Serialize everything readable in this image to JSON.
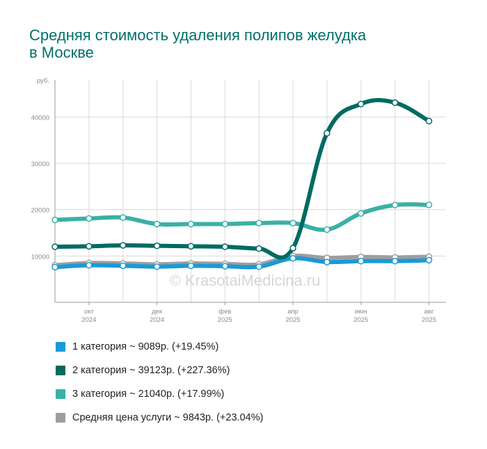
{
  "chart_data": {
    "type": "line",
    "title_lines": [
      "Средняя стоимость удаления полипов желудка",
      "в Москве"
    ],
    "ylabel": "руб.",
    "ylim": [
      0,
      48000
    ],
    "yticks": [
      10000,
      20000,
      30000,
      40000
    ],
    "ytick_labels": [
      "10000",
      "20000",
      "30000",
      "40000"
    ],
    "x": [
      "2024-09",
      "2024-10",
      "2024-11",
      "2024-12",
      "2025-01",
      "2025-02",
      "2025-03",
      "2025-04",
      "2025-05",
      "2025-06",
      "2025-07",
      "2025-08"
    ],
    "xtick_labels": [
      {
        "x": "2024-10",
        "month": "окт",
        "year": "2024"
      },
      {
        "x": "2024-12",
        "month": "дек",
        "year": "2024"
      },
      {
        "x": "2025-02",
        "month": "фев",
        "year": "2025"
      },
      {
        "x": "2025-04",
        "month": "апр",
        "year": "2025"
      },
      {
        "x": "2025-06",
        "month": "июн",
        "year": "2025"
      },
      {
        "x": "2025-08",
        "month": "авг",
        "year": "2025"
      }
    ],
    "grid": true,
    "legend_position": "bottom",
    "watermark": "© KrasotaiMedicina.ru",
    "series": [
      {
        "name": "1 категория ~ 9089р. (+19.45%)",
        "color": "#1a9ad6",
        "values": [
          7600,
          8000,
          7900,
          7700,
          7900,
          7800,
          7700,
          9500,
          8700,
          8900,
          8900,
          9089
        ]
      },
      {
        "name": "2 категория ~ 39123р. (+227.36%)",
        "color": "#006b61",
        "values": [
          12000,
          12100,
          12300,
          12200,
          12100,
          12000,
          11600,
          11700,
          36500,
          42800,
          43100,
          39123
        ]
      },
      {
        "name": "3 категория ~ 21040р. (+17.99%)",
        "color": "#3ab0a6",
        "values": [
          17800,
          18100,
          18300,
          16900,
          16900,
          16900,
          17100,
          17100,
          15700,
          19200,
          21000,
          21040
        ]
      },
      {
        "name": "Средняя цена услуги ~ 9843р. (+23.04%)",
        "color": "#9e9e9e",
        "values": [
          8000,
          8500,
          8400,
          8200,
          8400,
          8300,
          8200,
          10000,
          9600,
          9800,
          9700,
          9843
        ]
      }
    ]
  }
}
